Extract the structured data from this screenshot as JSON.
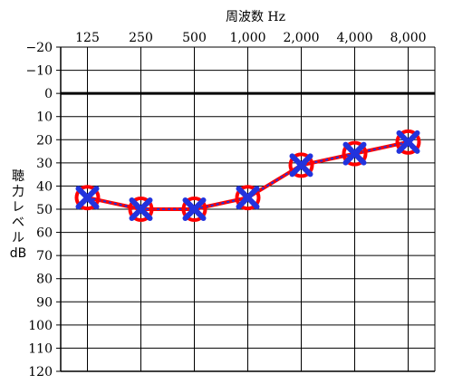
{
  "chart_data": {
    "type": "line",
    "title": "",
    "xlabel": "周波数 Hz",
    "ylabel": "聴力レベル dB",
    "ylabel_lines": [
      "聴",
      "力",
      "レ",
      "ベ",
      "ル",
      "dB"
    ],
    "categories": [
      "125",
      "250",
      "500",
      "1,000",
      "2,000",
      "4,000",
      "8,000"
    ],
    "y_ticks": [
      "−20",
      "−10",
      "0",
      "10",
      "20",
      "30",
      "40",
      "50",
      "60",
      "70",
      "80",
      "90",
      "100",
      "110",
      "120"
    ],
    "y_tick_values": [
      -20,
      -10,
      0,
      10,
      20,
      30,
      40,
      50,
      60,
      70,
      80,
      90,
      100,
      110,
      120
    ],
    "ylim": [
      -20,
      120
    ],
    "y_inverted": true,
    "grid": true,
    "series": [
      {
        "values": [
          45,
          50,
          50,
          45,
          31,
          26,
          21
        ],
        "color": "#ff0000",
        "line_style": "solid",
        "marker": "circle"
      },
      {
        "values": [
          45,
          50,
          50,
          45,
          31,
          26,
          21
        ],
        "color": "#2233dd",
        "line_style": "dotted",
        "marker": "x"
      }
    ]
  }
}
